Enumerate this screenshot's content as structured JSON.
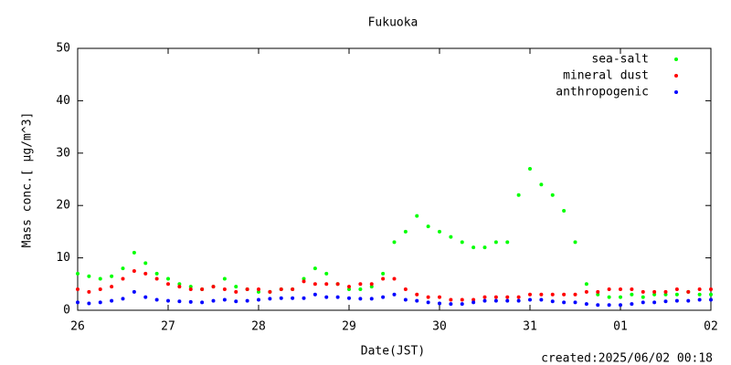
{
  "chart_data": {
    "type": "scatter",
    "title": "Fukuoka",
    "xlabel": "Date(JST)",
    "ylabel": "Mass conc.[ μg/m^3]",
    "annotation": "created:2025/06/02 00:18",
    "legend": "top-right",
    "xlim": [
      0,
      7
    ],
    "xticks": [
      {
        "value": 0,
        "label": "26"
      },
      {
        "value": 1,
        "label": "27"
      },
      {
        "value": 2,
        "label": "28"
      },
      {
        "value": 3,
        "label": "29"
      },
      {
        "value": 4,
        "label": "30"
      },
      {
        "value": 5,
        "label": "31"
      },
      {
        "value": 6,
        "label": "01"
      },
      {
        "value": 7,
        "label": "02"
      }
    ],
    "ylim": [
      0,
      50
    ],
    "yticks": [
      0,
      10,
      20,
      30,
      40,
      50
    ],
    "x": [
      0,
      0.125,
      0.25,
      0.375,
      0.5,
      0.625,
      0.75,
      0.875,
      1,
      1.125,
      1.25,
      1.375,
      1.5,
      1.625,
      1.75,
      1.875,
      2,
      2.125,
      2.25,
      2.375,
      2.5,
      2.625,
      2.75,
      2.875,
      3,
      3.125,
      3.25,
      3.375,
      3.5,
      3.625,
      3.75,
      3.875,
      4,
      4.125,
      4.25,
      4.375,
      4.5,
      4.625,
      4.75,
      4.875,
      5,
      5.125,
      5.25,
      5.375,
      5.5,
      5.625,
      5.75,
      5.875,
      6,
      6.125,
      6.25,
      6.375,
      6.5,
      6.625,
      6.75,
      6.875,
      7
    ],
    "series": [
      {
        "name": "sea-salt",
        "color": "#00ff00",
        "values": [
          7,
          6.5,
          6,
          6.5,
          8,
          11,
          9,
          7,
          6,
          5,
          4.5,
          4,
          4.5,
          6,
          4.5,
          4,
          3.5,
          3.5,
          4,
          4,
          6,
          8,
          7,
          5,
          4,
          4,
          4.5,
          7,
          13,
          15,
          18,
          16,
          15,
          14,
          13,
          12,
          12,
          13,
          13,
          22,
          27,
          24,
          22,
          19,
          13,
          5,
          3,
          2.5,
          2.5,
          3,
          2.5,
          3,
          3,
          3,
          3.5,
          3,
          3
        ]
      },
      {
        "name": "mineral dust",
        "color": "#ff0000",
        "values": [
          4,
          3.5,
          4,
          4.5,
          6,
          7.5,
          7,
          6,
          5,
          4.5,
          4,
          4,
          4.5,
          4,
          3.5,
          4,
          4,
          3.5,
          4,
          4,
          5.5,
          5,
          5,
          5,
          4.5,
          5,
          5,
          6,
          6,
          4,
          3,
          2.5,
          2.5,
          2,
          2,
          2,
          2.5,
          2.5,
          2.5,
          2.5,
          3,
          3,
          3,
          3,
          3,
          3.5,
          3.5,
          4,
          4,
          4,
          3.5,
          3.5,
          3.5,
          4,
          3.5,
          4,
          4
        ]
      },
      {
        "name": "anthropogenic",
        "color": "#0000ff",
        "values": [
          1.5,
          1.3,
          1.5,
          1.8,
          2.2,
          3.5,
          2.5,
          2,
          1.8,
          1.7,
          1.6,
          1.5,
          1.8,
          2,
          1.7,
          1.8,
          2,
          2.2,
          2.3,
          2.3,
          2.3,
          3,
          2.5,
          2.5,
          2.3,
          2.2,
          2.2,
          2.5,
          3,
          2,
          1.8,
          1.5,
          1.3,
          1.2,
          1.2,
          1.5,
          1.8,
          1.8,
          1.8,
          1.8,
          2,
          2,
          1.7,
          1.5,
          1.5,
          1.2,
          1,
          1,
          1,
          1.2,
          1.5,
          1.5,
          1.7,
          1.8,
          1.8,
          2,
          2
        ]
      }
    ]
  }
}
